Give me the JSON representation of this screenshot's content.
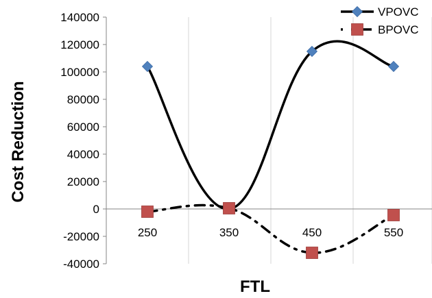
{
  "chart_data": {
    "type": "line",
    "title": "",
    "xlabel": "FTL",
    "ylabel": "Cost Reduction",
    "categories": [
      "250",
      "350",
      "450",
      "550"
    ],
    "ylim": [
      -40000,
      140000
    ],
    "yticks": [
      140000,
      120000,
      100000,
      80000,
      60000,
      40000,
      20000,
      0,
      -20000,
      -40000
    ],
    "grid": {
      "vertical": true,
      "horizontal": false
    },
    "legend_position": "top-right",
    "smoothed": true,
    "series": [
      {
        "name": "VPOVC",
        "values": [
          104000,
          0,
          115000,
          104000
        ],
        "color": "#4F81BD",
        "marker": "diamond",
        "line": "solid"
      },
      {
        "name": "BPOVC",
        "values": [
          -2000,
          500,
          -32000,
          -4500
        ],
        "color": "#C0504D",
        "marker": "square",
        "line": "dash-dot"
      }
    ]
  }
}
